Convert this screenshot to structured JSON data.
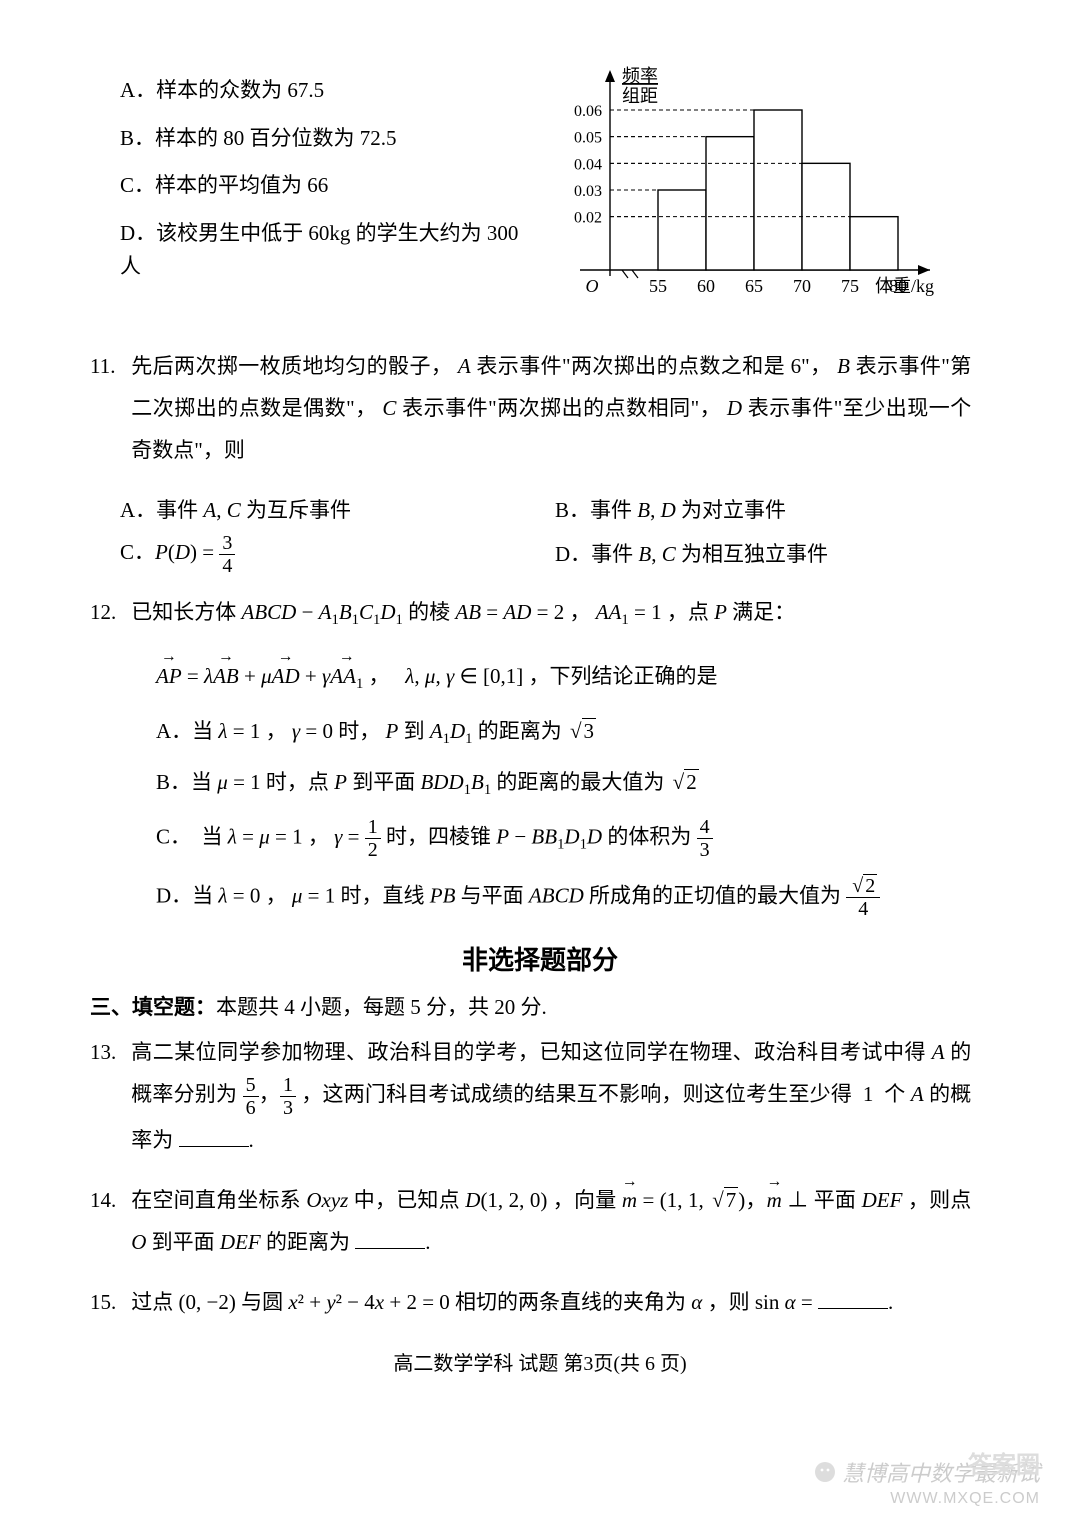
{
  "q10": {
    "options": {
      "A": "A．样本的众数为 67.5",
      "B": "B．样本的 80 百分位数为 72.5",
      "C": "C．样本的平均值为 66",
      "D": "D．该校男生中低于 60kg 的学生大约为 300 人"
    },
    "chart": {
      "type": "histogram",
      "y_label_top": "频率",
      "y_label_bottom": "组距",
      "x_label": "体重/kg",
      "origin": "O",
      "x_ticks": [
        55,
        60,
        65,
        70,
        75,
        80
      ],
      "y_ticks": [
        0.02,
        0.03,
        0.04,
        0.05,
        0.06
      ],
      "bars": [
        {
          "x0": 55,
          "x1": 60,
          "h": 0.03
        },
        {
          "x0": 60,
          "x1": 65,
          "h": 0.05
        },
        {
          "x0": 65,
          "x1": 70,
          "h": 0.06
        },
        {
          "x0": 70,
          "x1": 75,
          "h": 0.04
        },
        {
          "x0": 75,
          "x1": 80,
          "h": 0.02
        }
      ],
      "colors": {
        "axis": "#000000",
        "bar_fill": "#ffffff",
        "bar_stroke": "#000000",
        "guide": "#000000",
        "text": "#000000",
        "background": "#ffffff"
      },
      "line_width": 1.4,
      "dash": "4,3",
      "font_size": 18
    }
  },
  "q11": {
    "num": "11.",
    "stem": "先后两次掷一枚质地均匀的骰子， A 表示事件\"两次掷出的点数之和是 6\"， B 表示事件\"第二次掷出的点数是偶数\"， C 表示事件\"两次掷出的点数相同\"， D 表示事件\"至少出现一个奇数点\"，则",
    "A": "A．事件 A, C 为互斥事件",
    "B": "B．事件 B, D 为对立事件",
    "C_pre": "C．",
    "C_expr_lhs": "P(D) = ",
    "C_frac_num": "3",
    "C_frac_den": "4",
    "D": "D．事件 B, C 为相互独立事件"
  },
  "q12": {
    "num": "12.",
    "stem_pre": "已知长方体 ",
    "solid": "ABCD − A₁B₁C₁D₁",
    "stem_mid": " 的棱 AB = AD = 2 ， AA₁ = 1 ，点 P 满足：",
    "vec_line": "AP = λAB + μAD + γAA₁ ，   λ, μ, γ ∈ [0,1] ，下列结论正确的是",
    "A_pre": "A．当 λ = 1 ， γ = 0 时， P 到 A₁D₁ 的距离为 ",
    "A_sqrt": "3",
    "B_pre": "B．当 μ = 1 时，点 P 到平面 BDD₁B₁ 的距离的最大值为 ",
    "B_sqrt": "2",
    "C_pre": "C．  当 λ = μ = 1 ， γ = ",
    "C_gamma_num": "1",
    "C_gamma_den": "2",
    "C_mid": " 时，四棱锥 P − BB₁D₁D 的体积为 ",
    "C_vol_num": "4",
    "C_vol_den": "3",
    "D_pre": "D．当 λ = 0 ， μ = 1 时，直线 PB 与平面 ABCD 所成角的正切值的最大值为 ",
    "D_sqrt": "2",
    "D_den": "4"
  },
  "section2": {
    "title": "非选择题部分",
    "sub": "三、填空题：本题共 4 小题，每题 5 分，共 20 分."
  },
  "q13": {
    "num": "13.",
    "stem_pre": "高二某位同学参加物理、政治科目的学考，已知这位同学在物理、政治科目考试中得 A 的概率分别为 ",
    "p1_num": "5",
    "p1_den": "6",
    "comma": "，",
    "p2_num": "1",
    "p2_den": "3",
    "stem_post": " ，这两门科目考试成绩的结果互不影响，则这位考生至少得  1  个 A 的概率为 ",
    "period": "."
  },
  "q14": {
    "num": "14.",
    "stem_pre": "在空间直角坐标系 Oxyz 中，已知点 D(1, 2, 0) ，向量 ",
    "vec_m": "m",
    "eq": " = (1, 1, ",
    "sqrt7": "7",
    "after": ")，",
    "perp": " ⊥ 平面 DEF ，则点 O 到平面 DEF 的距离为 ",
    "period": "."
  },
  "q15": {
    "num": "15.",
    "stem": "过点 (0, −2) 与圆 x² + y² − 4x + 2 = 0 相切的两条直线的夹角为 α ，则 sin α = ",
    "period": "."
  },
  "footer": "高二数学学科  试题  第3页(共 6 页)",
  "watermark": {
    "logo_text": "慧博高中数学最新试",
    "site": "WWW.MXQE.COM",
    "corner": "答案圈"
  }
}
